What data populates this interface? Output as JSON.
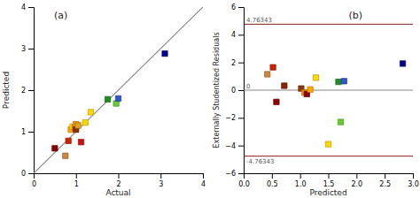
{
  "chart_data": [
    {
      "type": "scatter",
      "title": "(a)",
      "xlabel": "Actual",
      "ylabel": "Predicted",
      "xlim": [
        0,
        4
      ],
      "ylim": [
        0,
        4
      ],
      "xticks": [
        0,
        1,
        2,
        3,
        4
      ],
      "yticks": [
        0,
        1,
        2,
        3,
        4
      ],
      "series": [
        {
          "type": "line",
          "x": [
            0,
            4
          ],
          "values": [
            0,
            4
          ],
          "color": "#888888"
        },
        {
          "type": "scatter",
          "marker": "square",
          "x": [
            0.5,
            0.75,
            0.82,
            0.88,
            0.92,
            0.97,
            1.0,
            1.0,
            1.05,
            1.12,
            1.22,
            1.35,
            1.75,
            1.95,
            2.0,
            3.1
          ],
          "values": [
            0.6,
            0.42,
            0.78,
            1.05,
            1.12,
            1.1,
            1.18,
            1.05,
            1.15,
            0.75,
            1.22,
            1.47,
            1.78,
            1.68,
            1.8,
            2.88
          ],
          "colors": [
            "#8B0000",
            "#CD853F",
            "#CC2200",
            "#FFA500",
            "#FFD700",
            "#FF8C00",
            "#FF8C00",
            "#8B3000",
            "#DAA520",
            "#CC1111",
            "#FFD700",
            "#FFD700",
            "#228B22",
            "#66CC33",
            "#3355CC",
            "#00008B"
          ]
        }
      ]
    },
    {
      "type": "scatter",
      "title": "(b)",
      "xlabel": "Predicted",
      "ylabel": "Externally Studentized Residuals",
      "xlim": [
        0,
        3
      ],
      "ylim": [
        -6,
        6
      ],
      "xticks": [
        {
          "value": 0,
          "label": "0.0"
        },
        0.5,
        {
          "value": 1.0,
          "label": "1.0"
        },
        1.5,
        {
          "value": 2.0,
          "label": "2.0"
        },
        2.5,
        {
          "value": 3.0,
          "label": "3.0"
        }
      ],
      "yticks": [
        {
          "value": -6,
          "label": "−6"
        },
        {
          "value": -4,
          "label": "−4"
        },
        {
          "value": -2,
          "label": "−2"
        },
        0,
        2,
        4,
        6
      ],
      "reference_lines": [
        {
          "value": 0,
          "label": "0",
          "color": "#888888"
        },
        {
          "value": 4.76343,
          "label": "4.76343",
          "color": "#8B1A1A"
        },
        {
          "value": -4.76343,
          "label": "-4.76343",
          "color": "#8B1A1A"
        }
      ],
      "series": [
        {
          "type": "scatter",
          "marker": "square",
          "x": [
            0.42,
            0.52,
            0.58,
            0.72,
            1.02,
            1.08,
            1.12,
            1.18,
            1.28,
            1.5,
            1.68,
            1.72,
            1.78,
            2.82
          ],
          "values": [
            1.15,
            1.65,
            -0.85,
            0.32,
            0.12,
            -0.18,
            -0.28,
            0.05,
            0.9,
            -3.9,
            0.6,
            -2.3,
            0.65,
            1.92
          ],
          "colors": [
            "#CD853F",
            "#CC2200",
            "#8B0000",
            "#8B2200",
            "#8B3A00",
            "#FF8C00",
            "#8B0000",
            "#FFA500",
            "#FFD700",
            "#FFD700",
            "#228B22",
            "#66CC33",
            "#3355CC",
            "#00008B"
          ]
        }
      ]
    }
  ]
}
